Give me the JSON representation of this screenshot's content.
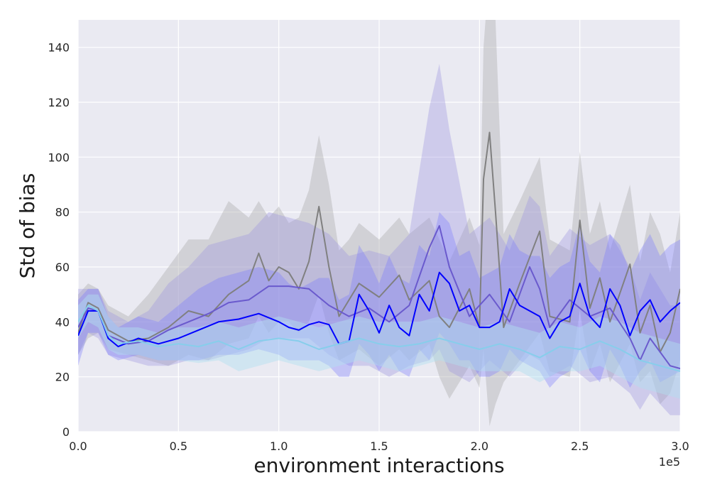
{
  "chart_data": {
    "type": "line",
    "title": "",
    "xlabel": "environment interactions",
    "ylabel": "Std of bias",
    "x_multiplier_label": "1e5",
    "xlim": [
      0,
      3.0
    ],
    "ylim": [
      0,
      150
    ],
    "x_ticks": [
      "0.0",
      "0.5",
      "1.0",
      "1.5",
      "2.0",
      "2.5",
      "3.0"
    ],
    "y_ticks": [
      "0",
      "20",
      "40",
      "60",
      "80",
      "100",
      "120",
      "140"
    ],
    "grid": true,
    "legend": "none",
    "x_unit": "1e5 environment interactions",
    "series": [
      {
        "color": "#808080",
        "band_color": "#b4b4b4",
        "band_opacity": 0.45,
        "x": [
          0.0,
          0.05,
          0.1,
          0.15,
          0.25,
          0.35,
          0.45,
          0.55,
          0.65,
          0.75,
          0.85,
          0.9,
          0.95,
          1.0,
          1.05,
          1.1,
          1.15,
          1.2,
          1.25,
          1.3,
          1.35,
          1.4,
          1.5,
          1.6,
          1.65,
          1.75,
          1.8,
          1.85,
          1.95,
          2.0,
          2.02,
          2.05,
          2.08,
          2.12,
          2.2,
          2.3,
          2.35,
          2.45,
          2.5,
          2.55,
          2.6,
          2.65,
          2.75,
          2.8,
          2.85,
          2.9,
          2.95,
          3.0
        ],
        "mean": [
          36,
          47,
          45,
          37,
          33,
          34,
          38,
          44,
          42,
          50,
          55,
          65,
          55,
          60,
          58,
          52,
          62,
          82,
          60,
          42,
          48,
          54,
          49,
          57,
          48,
          55,
          42,
          38,
          52,
          38,
          92,
          109,
          80,
          38,
          54,
          73,
          42,
          40,
          77,
          45,
          56,
          40,
          61,
          36,
          46,
          29,
          36,
          52
        ],
        "upper": [
          50,
          54,
          52,
          46,
          42,
          50,
          60,
          70,
          70,
          84,
          78,
          84,
          78,
          82,
          76,
          78,
          88,
          108,
          90,
          66,
          70,
          76,
          70,
          78,
          72,
          78,
          70,
          62,
          78,
          68,
          140,
          170,
          150,
          72,
          84,
          100,
          70,
          66,
          102,
          72,
          84,
          66,
          90,
          62,
          80,
          72,
          58,
          80
        ],
        "lower": [
          28,
          34,
          36,
          30,
          28,
          26,
          24,
          28,
          26,
          32,
          34,
          42,
          36,
          40,
          40,
          36,
          40,
          50,
          36,
          26,
          28,
          30,
          24,
          30,
          26,
          32,
          20,
          12,
          24,
          16,
          30,
          2,
          10,
          18,
          26,
          36,
          22,
          20,
          44,
          22,
          32,
          18,
          32,
          18,
          22,
          10,
          14,
          26
        ]
      },
      {
        "color": "#6a5acd",
        "band_color": "#9a92e0",
        "band_opacity": 0.35,
        "x": [
          0.0,
          0.05,
          0.1,
          0.15,
          0.25,
          0.35,
          0.45,
          0.55,
          0.65,
          0.75,
          0.85,
          0.95,
          1.05,
          1.15,
          1.25,
          1.35,
          1.45,
          1.55,
          1.65,
          1.75,
          1.8,
          1.85,
          1.95,
          2.05,
          2.15,
          2.25,
          2.3,
          2.35,
          2.45,
          2.55,
          2.65,
          2.75,
          2.8,
          2.85,
          2.95,
          3.0
        ],
        "mean": [
          38,
          45,
          44,
          35,
          32,
          33,
          37,
          40,
          43,
          47,
          48,
          53,
          53,
          52,
          46,
          42,
          45,
          40,
          46,
          67,
          75,
          60,
          42,
          50,
          40,
          60,
          52,
          38,
          48,
          42,
          45,
          34,
          26,
          34,
          24,
          23
        ],
        "upper": [
          52,
          52,
          52,
          44,
          40,
          44,
          54,
          60,
          68,
          70,
          72,
          80,
          78,
          76,
          72,
          64,
          66,
          64,
          72,
          118,
          134,
          110,
          72,
          78,
          66,
          86,
          82,
          64,
          74,
          68,
          72,
          60,
          48,
          58,
          46,
          46
        ],
        "lower": [
          28,
          36,
          34,
          28,
          26,
          24,
          24,
          26,
          26,
          28,
          30,
          34,
          34,
          34,
          28,
          24,
          24,
          20,
          24,
          26,
          30,
          22,
          18,
          26,
          20,
          28,
          26,
          20,
          24,
          18,
          20,
          14,
          8,
          14,
          6,
          6
        ]
      },
      {
        "color": "#0000ff",
        "band_color": "#7b7bff",
        "band_opacity": 0.35,
        "x": [
          0.0,
          0.05,
          0.1,
          0.15,
          0.2,
          0.3,
          0.4,
          0.5,
          0.6,
          0.7,
          0.8,
          0.9,
          1.0,
          1.05,
          1.1,
          1.15,
          1.2,
          1.25,
          1.3,
          1.35,
          1.4,
          1.45,
          1.5,
          1.55,
          1.6,
          1.65,
          1.7,
          1.75,
          1.8,
          1.85,
          1.9,
          1.95,
          2.0,
          2.05,
          2.1,
          2.15,
          2.2,
          2.25,
          2.3,
          2.35,
          2.4,
          2.45,
          2.5,
          2.55,
          2.6,
          2.65,
          2.7,
          2.75,
          2.8,
          2.85,
          2.9,
          2.95,
          3.0
        ],
        "mean": [
          35,
          44,
          44,
          34,
          31,
          34,
          32,
          34,
          37,
          40,
          41,
          43,
          40,
          38,
          37,
          39,
          40,
          39,
          32,
          33,
          50,
          44,
          36,
          46,
          38,
          35,
          50,
          44,
          58,
          54,
          44,
          46,
          38,
          38,
          40,
          52,
          46,
          44,
          42,
          34,
          40,
          42,
          54,
          42,
          38,
          52,
          46,
          35,
          44,
          48,
          40,
          44,
          47
        ],
        "upper": [
          48,
          52,
          52,
          42,
          38,
          42,
          40,
          46,
          52,
          56,
          58,
          60,
          58,
          54,
          52,
          54,
          56,
          56,
          48,
          50,
          68,
          62,
          54,
          64,
          56,
          54,
          68,
          64,
          80,
          76,
          64,
          66,
          56,
          58,
          60,
          72,
          66,
          64,
          64,
          56,
          60,
          62,
          76,
          62,
          58,
          72,
          68,
          58,
          66,
          72,
          64,
          68,
          70
        ],
        "lower": [
          24,
          36,
          36,
          28,
          26,
          28,
          26,
          26,
          26,
          28,
          28,
          30,
          28,
          26,
          26,
          26,
          26,
          24,
          20,
          20,
          32,
          28,
          22,
          28,
          22,
          20,
          30,
          26,
          36,
          32,
          26,
          26,
          20,
          20,
          22,
          30,
          26,
          24,
          22,
          16,
          20,
          22,
          30,
          22,
          18,
          30,
          24,
          16,
          22,
          26,
          18,
          20,
          22
        ]
      },
      {
        "color": "#87ceeb",
        "band_color": "#b2e0f0",
        "band_opacity": 0.45,
        "x": [
          0.0,
          0.05,
          0.1,
          0.15,
          0.2,
          0.3,
          0.4,
          0.5,
          0.6,
          0.7,
          0.8,
          0.9,
          1.0,
          1.1,
          1.2,
          1.3,
          1.4,
          1.5,
          1.6,
          1.7,
          1.8,
          1.9,
          2.0,
          2.1,
          2.2,
          2.3,
          2.4,
          2.5,
          2.6,
          2.7,
          2.8,
          2.9,
          3.0
        ],
        "mean": [
          40,
          46,
          44,
          35,
          32,
          33,
          31,
          32,
          31,
          33,
          30,
          33,
          34,
          33,
          30,
          32,
          34,
          32,
          31,
          32,
          34,
          32,
          30,
          32,
          30,
          27,
          31,
          30,
          33,
          30,
          26,
          24,
          22
        ],
        "upper": [
          46,
          50,
          50,
          42,
          38,
          38,
          36,
          38,
          38,
          40,
          38,
          40,
          42,
          40,
          38,
          40,
          42,
          40,
          40,
          40,
          42,
          40,
          38,
          40,
          38,
          36,
          40,
          38,
          42,
          40,
          36,
          34,
          32
        ],
        "lower": [
          34,
          40,
          38,
          30,
          28,
          28,
          26,
          26,
          25,
          26,
          22,
          24,
          26,
          24,
          22,
          24,
          26,
          24,
          22,
          24,
          26,
          24,
          22,
          22,
          22,
          18,
          22,
          22,
          24,
          20,
          16,
          14,
          12
        ]
      }
    ]
  }
}
